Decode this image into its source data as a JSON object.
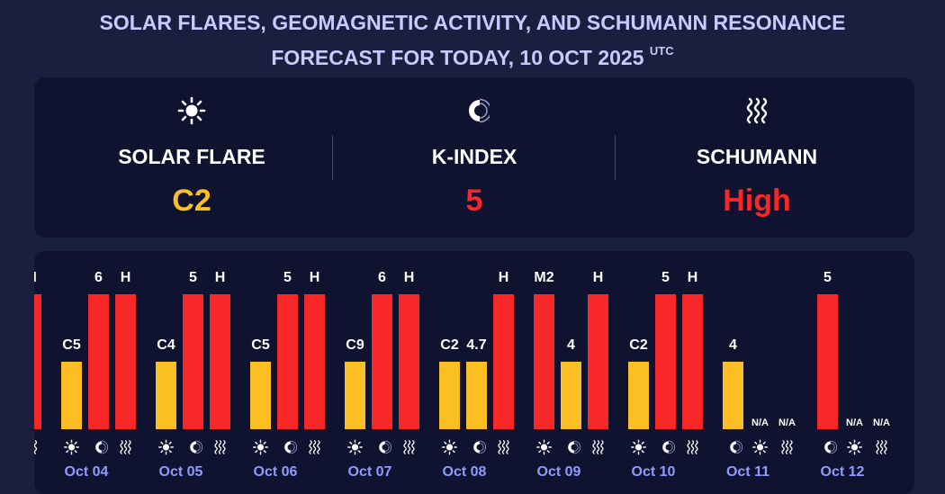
{
  "title": {
    "line1": "SOLAR FLARES, GEOMAGNETIC ACTIVITY, AND SCHUMANN RESONANCE",
    "line2": "FORECAST FOR TODAY, 10 OCT 2025",
    "tz": "UTC"
  },
  "summary": {
    "solar": {
      "icon": "sun-icon",
      "label": "SOLAR FLARE",
      "value": "C2",
      "color": "#fbbf24"
    },
    "kindex": {
      "icon": "magnet-icon",
      "label": "K-INDEX",
      "value": "5",
      "color": "#f82828"
    },
    "schumann": {
      "icon": "waves-icon",
      "label": "SCHUMANN",
      "value": "High",
      "color": "#f82828"
    }
  },
  "colors": {
    "yellow": "#fbbf24",
    "red": "#f82828",
    "date": "#8f9cff"
  },
  "chart_data": {
    "type": "bar",
    "categories": [
      "Oct 04",
      "Oct 05",
      "Oct 06",
      "Oct 07",
      "Oct 08",
      "Oct 09",
      "Oct 10",
      "Oct 11",
      "Oct 12"
    ],
    "partial_previous": {
      "label": "H",
      "color": "#f82828",
      "level": 1.0
    },
    "series": [
      {
        "icon": "sun-icon",
        "labels": [
          "C5",
          "C4",
          "C5",
          "C9",
          "C2",
          "M2",
          "C2",
          "N/A",
          "N/A"
        ],
        "levels": [
          0.5,
          0.5,
          0.5,
          0.5,
          0.5,
          1.0,
          0.5,
          0,
          0
        ],
        "colors": [
          "#fbbf24",
          "#fbbf24",
          "#fbbf24",
          "#fbbf24",
          "#fbbf24",
          "#f82828",
          "#fbbf24",
          "#fbbf24",
          "#fbbf24"
        ]
      },
      {
        "icon": "magnet-icon",
        "labels": [
          "6",
          "5",
          "5",
          "6",
          "4.7",
          "4",
          "5",
          "4",
          "5"
        ],
        "levels": [
          1.0,
          1.0,
          1.0,
          1.0,
          0.5,
          0.5,
          1.0,
          0.5,
          1.0
        ],
        "colors": [
          "#f82828",
          "#f82828",
          "#f82828",
          "#f82828",
          "#fbbf24",
          "#fbbf24",
          "#f82828",
          "#fbbf24",
          "#f82828"
        ]
      },
      {
        "icon": "waves-icon",
        "labels": [
          "H",
          "H",
          "H",
          "H",
          "H",
          "H",
          "H",
          "N/A",
          "N/A"
        ],
        "levels": [
          1.0,
          1.0,
          1.0,
          1.0,
          1.0,
          1.0,
          1.0,
          0,
          0
        ],
        "colors": [
          "#f82828",
          "#f82828",
          "#f82828",
          "#f82828",
          "#f82828",
          "#f82828",
          "#f82828",
          "#f82828",
          "#f82828"
        ]
      }
    ],
    "order": [
      [
        "sun-icon",
        "magnet-icon",
        "waves-icon"
      ],
      [
        "sun-icon",
        "magnet-icon",
        "waves-icon"
      ],
      [
        "sun-icon",
        "magnet-icon",
        "waves-icon"
      ],
      [
        "sun-icon",
        "magnet-icon",
        "waves-icon"
      ],
      [
        "sun-icon",
        "magnet-icon",
        "waves-icon"
      ],
      [
        "sun-icon",
        "magnet-icon",
        "waves-icon"
      ],
      [
        "sun-icon",
        "magnet-icon",
        "waves-icon"
      ],
      [
        "magnet-icon",
        "sun-icon",
        "waves-icon"
      ],
      [
        "magnet-icon",
        "sun-icon",
        "waves-icon"
      ]
    ]
  }
}
